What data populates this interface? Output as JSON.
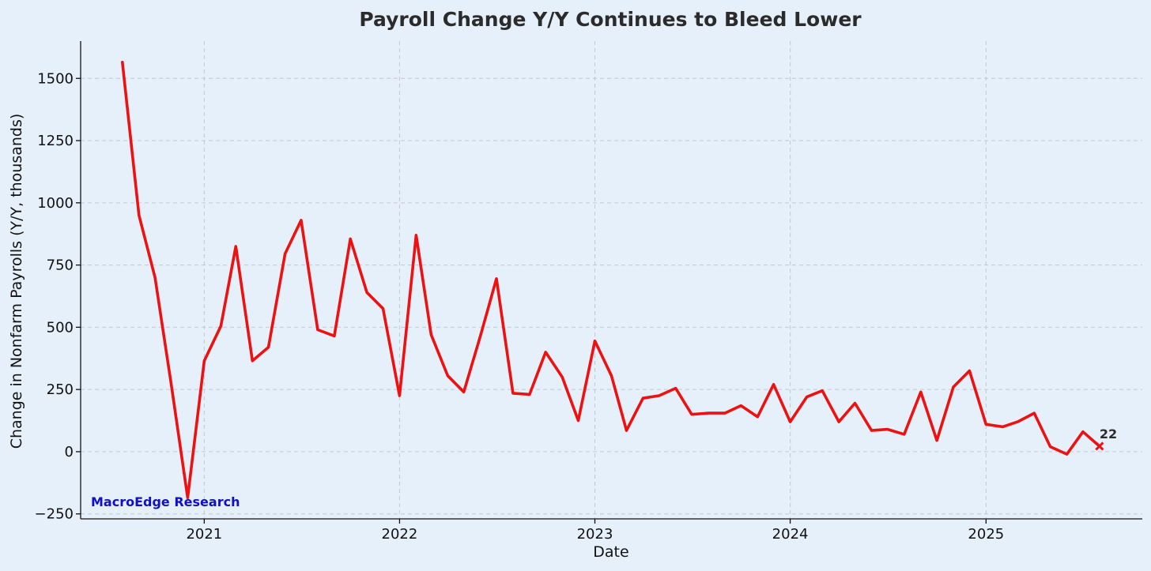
{
  "chart_data": {
    "type": "line",
    "title": "Payroll Change Y/Y Continues to Bleed Lower",
    "xlabel": "Date",
    "ylabel": "Change in Nonfarm Payrolls (Y/Y, thousands)",
    "ylim": [
      -270,
      1650
    ],
    "xlim": [
      "2020-05-15",
      "2025-10-20"
    ],
    "yticks": [
      -250,
      0,
      250,
      500,
      750,
      1000,
      1250,
      1500
    ],
    "xticks": [
      "2021",
      "2022",
      "2023",
      "2024",
      "2025"
    ],
    "grid": true,
    "series": [
      {
        "color": "#ee1111",
        "x": [
          "2020-08",
          "2020-09",
          "2020-10",
          "2020-11",
          "2020-12",
          "2021-01",
          "2021-02",
          "2021-03",
          "2021-04",
          "2021-05",
          "2021-06",
          "2021-07",
          "2021-08",
          "2021-09",
          "2021-10",
          "2021-11",
          "2021-12",
          "2022-01",
          "2022-02",
          "2022-03",
          "2022-04",
          "2022-05",
          "2022-06",
          "2022-07",
          "2022-08",
          "2022-09",
          "2022-10",
          "2022-11",
          "2022-12",
          "2023-01",
          "2023-02",
          "2023-03",
          "2023-04",
          "2023-05",
          "2023-06",
          "2023-07",
          "2023-08",
          "2023-09",
          "2023-10",
          "2023-11",
          "2023-12",
          "2024-01",
          "2024-02",
          "2024-03",
          "2024-04",
          "2024-05",
          "2024-06",
          "2024-07",
          "2024-08",
          "2024-09",
          "2024-10",
          "2024-11",
          "2024-12",
          "2025-01",
          "2025-02",
          "2025-03",
          "2025-04",
          "2025-05",
          "2025-06",
          "2025-07",
          "2025-08"
        ],
        "values": [
          1565,
          950,
          700,
          260,
          -185,
          365,
          505,
          825,
          365,
          420,
          795,
          930,
          490,
          465,
          855,
          640,
          575,
          225,
          870,
          470,
          305,
          240,
          465,
          695,
          235,
          230,
          400,
          300,
          125,
          445,
          305,
          85,
          215,
          225,
          255,
          150,
          155,
          155,
          185,
          140,
          270,
          120,
          220,
          245,
          120,
          195,
          85,
          90,
          70,
          240,
          45,
          260,
          325,
          110,
          100,
          120,
          155,
          20,
          -10,
          80,
          22
        ]
      }
    ],
    "annotations": [
      {
        "text": "22",
        "x": "2025-08",
        "y": 22
      },
      {
        "text": "MacroEdge Research"
      }
    ]
  }
}
